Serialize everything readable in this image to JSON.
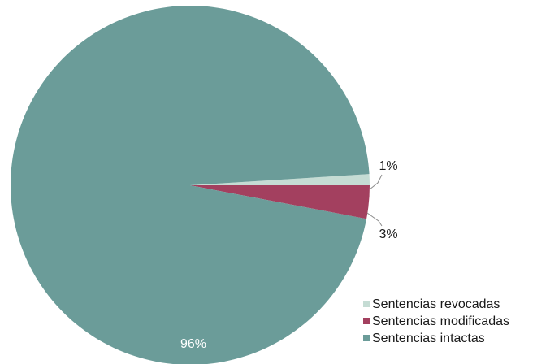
{
  "chart_data": {
    "type": "pie",
    "series": [
      {
        "name": "Sentencias revocadas",
        "value": 1,
        "label": "1%",
        "color": "#c5dcd4"
      },
      {
        "name": "Sentencias modificadas",
        "value": 3,
        "label": "3%",
        "color": "#a3405f"
      },
      {
        "name": "Sentencias intactas",
        "value": 96,
        "label": "96%",
        "color": "#6b9c99"
      }
    ],
    "legend_position": "bottom-right"
  }
}
